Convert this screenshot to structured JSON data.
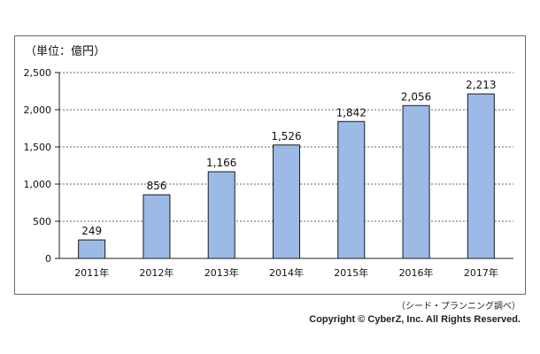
{
  "chart_data": {
    "type": "bar",
    "ylabel": "（単位：億円）",
    "categories": [
      "2011年",
      "2012年",
      "2013年",
      "2014年",
      "2015年",
      "2016年",
      "2017年"
    ],
    "values": [
      249,
      856,
      1166,
      1526,
      1842,
      2056,
      2213
    ],
    "value_labels": [
      "249",
      "856",
      "1,166",
      "1,526",
      "1,842",
      "2,056",
      "2,213"
    ],
    "yticks": [
      0,
      500,
      1000,
      1500,
      2000,
      2500
    ],
    "ytick_labels": [
      "0",
      "500",
      "1,000",
      "1,500",
      "2,000",
      "2,500"
    ],
    "ylim": [
      0,
      2500
    ],
    "grid": true,
    "legend": "none",
    "bar_color": "#9bbbe6",
    "bar_stroke": "#1a1a1a"
  },
  "source_note": "（シード・プランニング調べ）",
  "copyright": "Copyright © CyberZ, Inc. All Rights Reserved."
}
